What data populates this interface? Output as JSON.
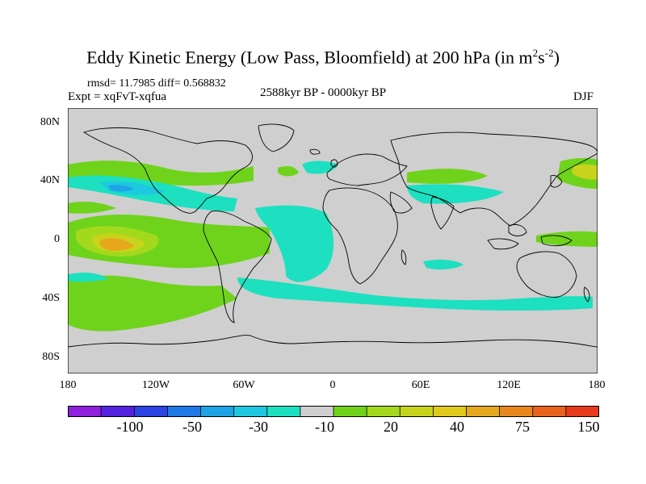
{
  "title": {
    "main": "Eddy Kinetic Energy (Low Pass, Bloomfield) at 200 hPa (in m",
    "sup1": "2",
    "mid": "s",
    "sup2": "-2",
    "end": ")"
  },
  "stats": "rmsd= 11.7985 diff= 0.568832",
  "expt": "Expt = xqFvT-xqfua",
  "period": "2588kyr BP - 0000kyr BP",
  "season": "DJF",
  "y_axis": [
    "80N",
    "40N",
    "0",
    "40S",
    "80S"
  ],
  "x_axis": [
    "180",
    "120W",
    "60W",
    "0",
    "60E",
    "120E",
    "180"
  ],
  "colorbar": {
    "colors": [
      "#8f1fdd",
      "#5523e0",
      "#2c44e3",
      "#1e78e6",
      "#1da3e6",
      "#1dc8e0",
      "#1ce0c0",
      "#cfcfcf",
      "#6fd31c",
      "#a2d91c",
      "#c8d41c",
      "#e0c81c",
      "#e6a81c",
      "#e8881c",
      "#e8641c",
      "#e63c1c"
    ],
    "labels": [
      "-100",
      "-50",
      "-30",
      "-10",
      "20",
      "40",
      "75",
      "150"
    ]
  },
  "map_colors": {
    "background": "#cfcfcf",
    "coast": "#000000"
  }
}
